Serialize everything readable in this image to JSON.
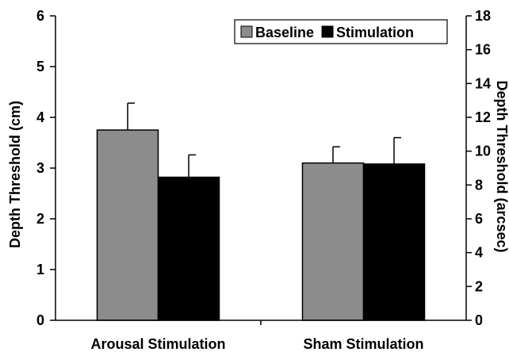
{
  "chart_data": {
    "type": "bar",
    "title": "",
    "categories": [
      "Arousal Stimulation",
      "Sham Stimulation"
    ],
    "series": [
      {
        "name": "Baseline",
        "values": [
          3.75,
          3.1
        ],
        "error": [
          0.53,
          0.32
        ],
        "color": "#8c8c8c"
      },
      {
        "name": "Stimulation",
        "values": [
          2.82,
          3.08
        ],
        "error": [
          0.44,
          0.52
        ],
        "color": "#000000"
      }
    ],
    "ylabel": "Depth Threshold (cm)",
    "ylim": [
      0,
      6
    ],
    "yticks": [
      0,
      1,
      2,
      3,
      4,
      5,
      6
    ],
    "y2label": "Depth Threshold (arcsec)",
    "y2lim": [
      0,
      18
    ],
    "y2ticks": [
      0,
      2,
      4,
      6,
      8,
      10,
      12,
      14,
      16,
      18
    ],
    "grid": false,
    "legend_position": "top-right"
  }
}
